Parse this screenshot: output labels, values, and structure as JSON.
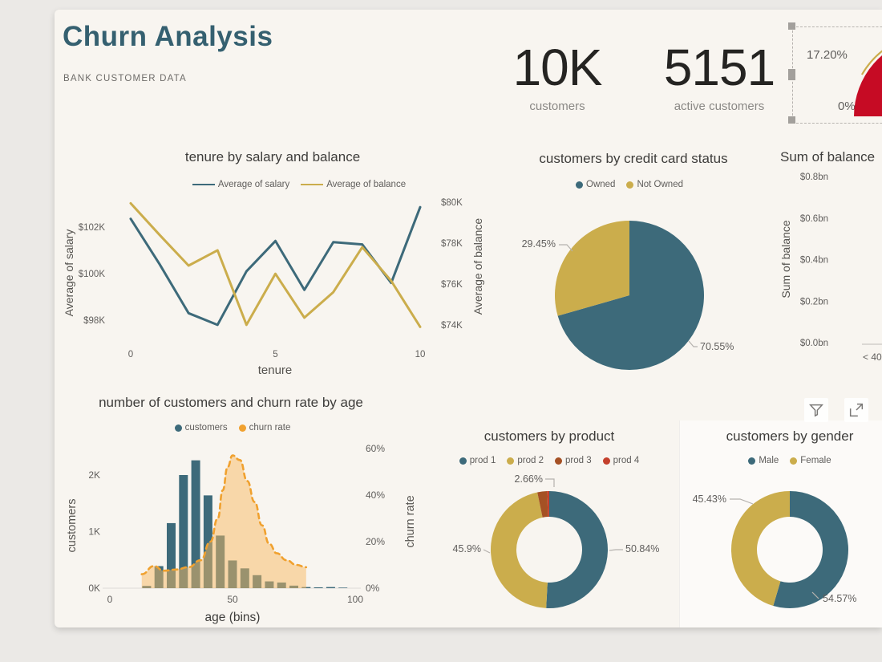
{
  "header": {
    "title": "Churn Analysis",
    "subtitle": "BANK CUSTOMER DATA",
    "title_color": "#356070"
  },
  "kpis": [
    {
      "value": "10K",
      "label": "customers"
    },
    {
      "value": "5151",
      "label": "active customers"
    }
  ],
  "gauge": {
    "upper_label": "17.20%",
    "lower_label": "0%",
    "arc_color": "#c60b24",
    "edge_color": "#cbad4c",
    "selected": true
  },
  "visual_header_icons": [
    {
      "name": "filter"
    },
    {
      "name": "focus-mode"
    },
    {
      "name": "more-options"
    }
  ],
  "colors": {
    "teal": "#3d6a7a",
    "gold": "#cbad4c",
    "orange": "#f0a12f",
    "rust": "#a55124",
    "red": "#c4402c",
    "tick_text": "#605e5c",
    "leader": "#b5b2ae",
    "canvas": "#f8f5f0",
    "outer": "#ebe9e6"
  },
  "chart_data": [
    {
      "id": "tenure-by-salary-and-balance",
      "type": "line",
      "title": "tenure by salary and balance",
      "xlabel": "tenure",
      "x": [
        0,
        1,
        2,
        3,
        4,
        5,
        6,
        7,
        8,
        9,
        10
      ],
      "x_ticks": [
        {
          "label": "0",
          "value": 0
        },
        {
          "label": "5",
          "value": 5
        },
        {
          "label": "10",
          "value": 10
        }
      ],
      "series": [
        {
          "name": "Average of salary",
          "axis": "left",
          "color": "#3d6a7a",
          "values_k_usd": [
            102.35,
            100.4,
            98.3,
            97.8,
            100.1,
            101.4,
            99.3,
            101.35,
            101.25,
            99.6,
            102.85
          ]
        },
        {
          "name": "Average of balance",
          "axis": "right",
          "color": "#cbad4c",
          "values_k_usd": [
            79.95,
            78.4,
            76.9,
            77.65,
            74.0,
            76.5,
            74.35,
            75.6,
            77.8,
            76.15,
            73.9
          ]
        }
      ],
      "left_axis": {
        "title": "Average of salary",
        "domain": [
          97.45,
          103.2
        ],
        "ticks": [
          {
            "label": "$98K",
            "value": 98
          },
          {
            "label": "$100K",
            "value": 100
          },
          {
            "label": "$102K",
            "value": 102
          }
        ]
      },
      "right_axis": {
        "title": "Average of balance",
        "domain": [
          73.6,
          80.16
        ],
        "ticks": [
          {
            "label": "$74K",
            "value": 74
          },
          {
            "label": "$76K",
            "value": 76
          },
          {
            "label": "$78K",
            "value": 78
          },
          {
            "label": "$80K",
            "value": 80
          }
        ]
      },
      "legend_position": "top"
    },
    {
      "id": "customers-by-credit-card-status",
      "type": "pie",
      "title": "customers by credit card status",
      "slices": [
        {
          "label": "Owned",
          "value": 70.55,
          "display": "70.55%",
          "color": "#3d6a7a"
        },
        {
          "label": "Not Owned",
          "value": 29.45,
          "display": "29.45%",
          "color": "#cbad4c"
        }
      ]
    },
    {
      "id": "sum-of-balance-by-age",
      "type": "bar",
      "title": "Sum of balance",
      "ylabel": "Sum of balance",
      "y_ticks": [
        {
          "label": "$0.0bn",
          "value": 0.0
        },
        {
          "label": "$0.2bn",
          "value": 0.2
        },
        {
          "label": "$0.4bn",
          "value": 0.4
        },
        {
          "label": "$0.6bn",
          "value": 0.6
        },
        {
          "label": "$0.8bn",
          "value": 0.8
        }
      ],
      "categories": [
        "< 40"
      ]
    },
    {
      "id": "customers-and-churn-rate-by-age",
      "type": "combo",
      "title": "number of customers and churn rate by age",
      "xlabel": "age (bins)",
      "x_ticks": [
        {
          "label": "0",
          "value": 0
        },
        {
          "label": "50",
          "value": 50
        },
        {
          "label": "100",
          "value": 100
        }
      ],
      "bars": {
        "name": "customers",
        "color": "#3d6a7a",
        "bin_size": 5,
        "ages": [
          15,
          20,
          25,
          30,
          35,
          40,
          45,
          50,
          55,
          60,
          65,
          70,
          75,
          80,
          85,
          90,
          95
        ],
        "values": [
          40,
          390,
          1150,
          2000,
          2260,
          1640,
          930,
          490,
          350,
          230,
          120,
          100,
          45,
          20,
          15,
          20,
          10
        ]
      },
      "area": {
        "name": "churn rate",
        "line_color": "#f0a12f",
        "fill_color": "rgba(247,186,97,0.5)",
        "points_age_pct": [
          [
            13,
            6
          ],
          [
            18,
            9.5
          ],
          [
            22,
            7.5
          ],
          [
            27,
            8
          ],
          [
            32,
            9
          ],
          [
            37,
            12
          ],
          [
            41,
            20
          ],
          [
            44,
            30
          ],
          [
            46,
            42
          ],
          [
            48,
            52
          ],
          [
            50,
            57
          ],
          [
            53,
            55
          ],
          [
            56,
            46
          ],
          [
            59,
            37
          ],
          [
            62,
            27
          ],
          [
            65,
            19
          ],
          [
            68,
            15
          ],
          [
            72,
            12
          ],
          [
            76,
            10
          ],
          [
            80,
            9
          ]
        ]
      },
      "left_axis": {
        "title": "customers",
        "domain": [
          0,
          2553
        ],
        "ticks": [
          {
            "label": "0K",
            "value": 0
          },
          {
            "label": "1K",
            "value": 1000
          },
          {
            "label": "2K",
            "value": 2000
          }
        ]
      },
      "right_axis": {
        "title": "churn rate",
        "domain": [
          0,
          62
        ],
        "ticks": [
          {
            "label": "0%",
            "value": 0
          },
          {
            "label": "20%",
            "value": 20
          },
          {
            "label": "40%",
            "value": 40
          },
          {
            "label": "60%",
            "value": 60
          }
        ]
      }
    },
    {
      "id": "customers-by-product",
      "type": "donut",
      "title": "customers by product",
      "slices": [
        {
          "label": "prod 1",
          "value": 50.84,
          "display": "50.84%",
          "color": "#3d6a7a"
        },
        {
          "label": "prod 2",
          "value": 45.9,
          "display": "45.9%",
          "color": "#cbad4c"
        },
        {
          "label": "prod 3",
          "value": 2.66,
          "display": "2.66%",
          "color": "#a55124"
        },
        {
          "label": "prod 4",
          "value": 0.6,
          "display": null,
          "color": "#c4402c"
        }
      ]
    },
    {
      "id": "customers-by-gender",
      "type": "donut",
      "title": "customers by gender",
      "slices": [
        {
          "label": "Male",
          "value": 54.57,
          "display": "54.57%",
          "color": "#3d6a7a"
        },
        {
          "label": "Female",
          "value": 45.43,
          "display": "45.43%",
          "color": "#cbad4c"
        }
      ]
    }
  ]
}
